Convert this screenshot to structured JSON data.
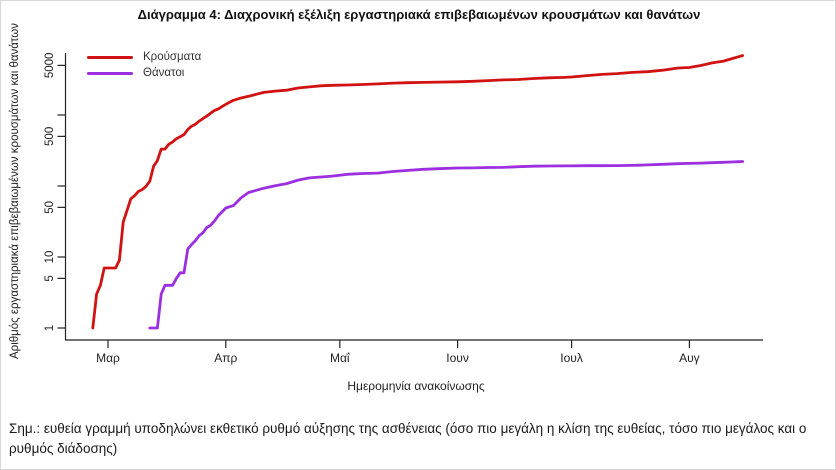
{
  "title": "Διάγραμμα 4: Διαχρονική εξέλιξη εργαστηριακά επιβεβαιωμένων κρουσμάτων και θανάτων",
  "note": "Σημ.: ευθεία γραμμή υποδηλώνει εκθετικό ρυθμό αύξησης της ασθένειας (όσο πιο μεγάλη η κλίση της ευθείας, τόσο πιο μεγάλος και ο ρυθμός διάδοσης)",
  "legend": {
    "cases_label": "Κρούσματα",
    "deaths_label": "Θάνατοι"
  },
  "chart_data": {
    "type": "line",
    "title": "Διάγραμμα 4: Διαχρονική εξέλιξη εργαστηριακά επιβεβαιωμένων κρουσμάτων και θανάτων",
    "xlabel": "Ημερομηνία ανακοίνωσης",
    "ylabel": "Αριθμός εργαστηριακά επιβεβαιωμένων κρουσμάτων και θανάτων",
    "y_scale": "log10",
    "ylim": [
      1,
      7000
    ],
    "grid": false,
    "legend_position": "top-left-inside",
    "x_axis": {
      "unit_days_from": "Mar 1",
      "ticks": [
        {
          "label": "Μαρ",
          "d": 0
        },
        {
          "label": "Απρ",
          "d": 31
        },
        {
          "label": "Μαΐ",
          "d": 61
        },
        {
          "label": "Ιουν",
          "d": 92
        },
        {
          "label": "Ιουλ",
          "d": 122
        },
        {
          "label": "Αυγ",
          "d": 153
        }
      ]
    },
    "y_axis": {
      "ticks": [
        {
          "v": 1,
          "label": "1"
        },
        {
          "v": 5,
          "label": "5"
        },
        {
          "v": 10,
          "label": "10"
        },
        {
          "v": 50,
          "label": "50"
        },
        {
          "v": 100,
          "label": ""
        },
        {
          "v": 500,
          "label": "500"
        },
        {
          "v": 1000,
          "label": ""
        },
        {
          "v": 5000,
          "label": "5000"
        }
      ]
    },
    "series": [
      {
        "name": "Κρούσματα",
        "color": "#d01212",
        "points": [
          [
            -4,
            1
          ],
          [
            -3,
            3
          ],
          [
            -2,
            4
          ],
          [
            -1,
            7
          ],
          [
            2,
            7
          ],
          [
            3,
            9
          ],
          [
            4,
            31
          ],
          [
            5,
            45
          ],
          [
            6,
            66
          ],
          [
            7,
            73
          ],
          [
            8,
            84
          ],
          [
            9,
            89
          ],
          [
            10,
            99
          ],
          [
            11,
            117
          ],
          [
            12,
            190
          ],
          [
            13,
            228
          ],
          [
            14,
            331
          ],
          [
            15,
            331
          ],
          [
            16,
            387
          ],
          [
            17,
            418
          ],
          [
            18,
            464
          ],
          [
            19,
            495
          ],
          [
            20,
            530
          ],
          [
            21,
            624
          ],
          [
            22,
            695
          ],
          [
            23,
            743
          ],
          [
            24,
            821
          ],
          [
            25,
            892
          ],
          [
            26,
            966
          ],
          [
            27,
            1061
          ],
          [
            28,
            1156
          ],
          [
            29,
            1212
          ],
          [
            30,
            1314
          ],
          [
            31,
            1415
          ],
          [
            33,
            1613
          ],
          [
            35,
            1735
          ],
          [
            37,
            1832
          ],
          [
            39,
            1955
          ],
          [
            41,
            2081
          ],
          [
            44,
            2170
          ],
          [
            47,
            2235
          ],
          [
            50,
            2401
          ],
          [
            53,
            2490
          ],
          [
            56,
            2576
          ],
          [
            59,
            2620
          ],
          [
            63,
            2642
          ],
          [
            67,
            2691
          ],
          [
            71,
            2744
          ],
          [
            75,
            2810
          ],
          [
            79,
            2853
          ],
          [
            83,
            2882
          ],
          [
            87,
            2906
          ],
          [
            92,
            2937
          ],
          [
            96,
            2980
          ],
          [
            100,
            3049
          ],
          [
            104,
            3121
          ],
          [
            108,
            3166
          ],
          [
            112,
            3266
          ],
          [
            116,
            3343
          ],
          [
            120,
            3390
          ],
          [
            122,
            3432
          ],
          [
            126,
            3589
          ],
          [
            130,
            3732
          ],
          [
            134,
            3826
          ],
          [
            138,
            3983
          ],
          [
            142,
            4077
          ],
          [
            146,
            4279
          ],
          [
            150,
            4587
          ],
          [
            153,
            4662
          ],
          [
            156,
            4974
          ],
          [
            159,
            5421
          ],
          [
            162,
            5749
          ],
          [
            164,
            6177
          ],
          [
            166,
            6632
          ],
          [
            167,
            6858
          ]
        ]
      },
      {
        "name": "Θάνατοι",
        "color": "#9c2fe0",
        "points": [
          [
            11,
            1
          ],
          [
            13,
            1
          ],
          [
            14,
            3
          ],
          [
            15,
            4
          ],
          [
            17,
            4
          ],
          [
            18,
            5
          ],
          [
            19,
            6
          ],
          [
            20,
            6
          ],
          [
            21,
            13
          ],
          [
            22,
            15
          ],
          [
            23,
            17
          ],
          [
            24,
            20
          ],
          [
            25,
            22
          ],
          [
            26,
            26
          ],
          [
            27,
            28
          ],
          [
            28,
            32
          ],
          [
            29,
            38
          ],
          [
            30,
            43
          ],
          [
            31,
            49
          ],
          [
            33,
            53
          ],
          [
            35,
            68
          ],
          [
            37,
            81
          ],
          [
            39,
            87
          ],
          [
            41,
            93
          ],
          [
            44,
            101
          ],
          [
            47,
            108
          ],
          [
            50,
            121
          ],
          [
            53,
            130
          ],
          [
            56,
            134
          ],
          [
            59,
            138
          ],
          [
            63,
            146
          ],
          [
            67,
            150
          ],
          [
            71,
            152
          ],
          [
            75,
            160
          ],
          [
            79,
            166
          ],
          [
            83,
            172
          ],
          [
            87,
            175
          ],
          [
            92,
            179
          ],
          [
            96,
            180
          ],
          [
            100,
            182
          ],
          [
            104,
            183
          ],
          [
            108,
            187
          ],
          [
            112,
            190
          ],
          [
            116,
            191
          ],
          [
            120,
            192
          ],
          [
            122,
            192
          ],
          [
            126,
            193
          ],
          [
            130,
            193
          ],
          [
            134,
            194
          ],
          [
            138,
            195
          ],
          [
            142,
            198
          ],
          [
            146,
            202
          ],
          [
            150,
            206
          ],
          [
            153,
            208
          ],
          [
            156,
            210
          ],
          [
            159,
            213
          ],
          [
            162,
            216
          ],
          [
            164,
            218
          ],
          [
            166,
            220
          ],
          [
            167,
            221
          ]
        ]
      }
    ]
  }
}
